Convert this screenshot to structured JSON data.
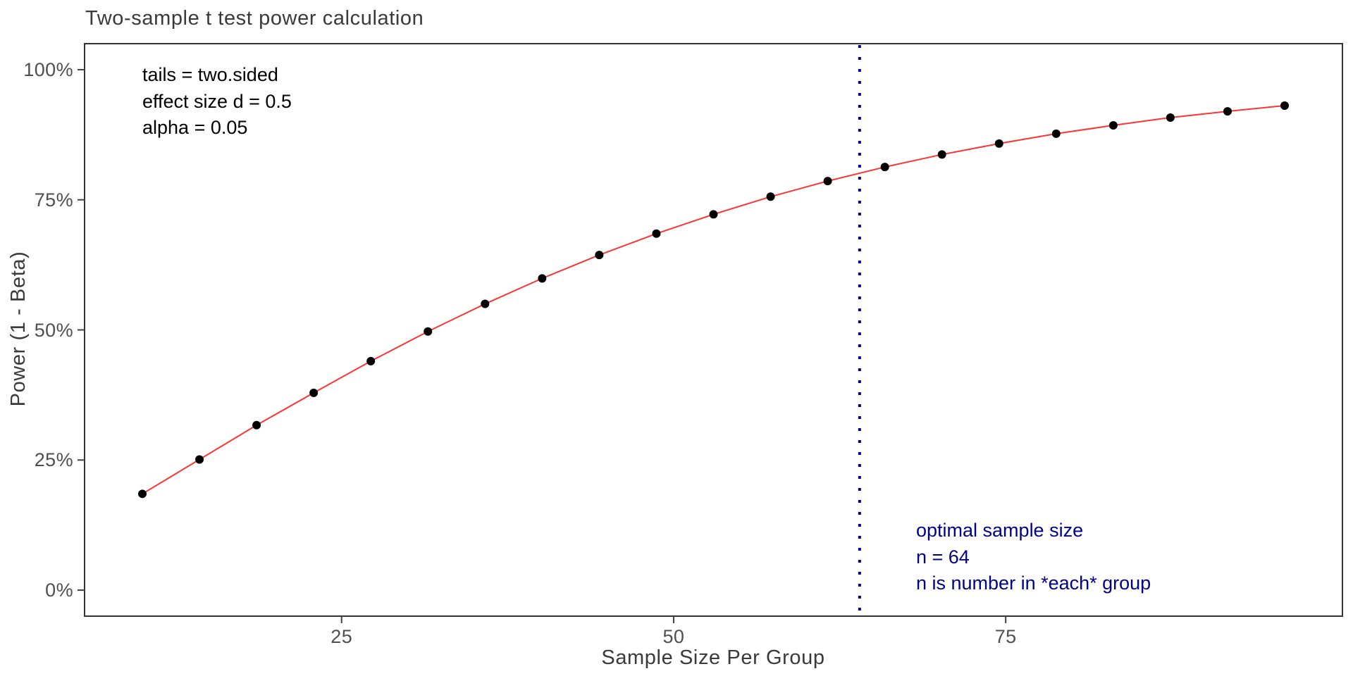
{
  "title": "Two-sample t test power calculation",
  "chart_data": {
    "type": "line",
    "title": "Two-sample t test power calculation",
    "xlabel": "Sample Size Per Group",
    "ylabel": "Power (1 - Beta)",
    "xlim": [
      5.65,
      100.35
    ],
    "ylim": [
      -0.05,
      1.05
    ],
    "grid": false,
    "legend": false,
    "background": "#ffffff",
    "panel_border_color": "#333333",
    "tick_color": "#404040",
    "x_ticks": [
      {
        "value": 25,
        "label": "25"
      },
      {
        "value": 50,
        "label": "50"
      },
      {
        "value": 75,
        "label": "75"
      }
    ],
    "y_ticks": [
      {
        "value": 0.0,
        "label": "0%"
      },
      {
        "value": 0.25,
        "label": "25%"
      },
      {
        "value": 0.5,
        "label": "50%"
      },
      {
        "value": 0.75,
        "label": "75%"
      },
      {
        "value": 1.0,
        "label": "100%"
      }
    ],
    "series": [
      {
        "name": "power-curve",
        "line_color": "#ff3333",
        "point_color": "#000000",
        "point_radius": 6,
        "x": [
          10,
          14.3,
          18.6,
          22.9,
          27.2,
          31.5,
          35.8,
          40.1,
          44.4,
          48.7,
          53,
          57.3,
          61.6,
          65.9,
          70.2,
          74.5,
          78.8,
          83.1,
          87.4,
          91.7,
          96
        ],
        "y": [
          0.185,
          0.251,
          0.317,
          0.379,
          0.44,
          0.497,
          0.55,
          0.599,
          0.644,
          0.685,
          0.722,
          0.756,
          0.786,
          0.813,
          0.837,
          0.858,
          0.877,
          0.893,
          0.908,
          0.92,
          0.931
        ]
      }
    ],
    "vline": {
      "x": 64,
      "color": "#00008B",
      "linetype": "dotted"
    },
    "annotations": [
      {
        "name": "test-parameters",
        "color": "#000000",
        "lines": [
          "tails = two.sided",
          "effect size d = 0.5",
          "alpha = 0.05"
        ]
      },
      {
        "name": "optimal-sample-size",
        "color": "#00008B",
        "lines": [
          "optimal sample size",
          "n = 64",
          "n is number in *each* group"
        ]
      }
    ]
  }
}
